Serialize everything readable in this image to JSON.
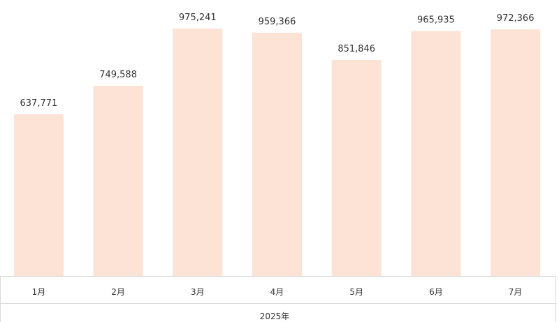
{
  "chart_data": {
    "type": "bar",
    "categories": [
      "1月",
      "2月",
      "3月",
      "4月",
      "5月",
      "6月",
      "7月"
    ],
    "values": [
      637771,
      749588,
      975241,
      959366,
      851846,
      965935,
      972366
    ],
    "data_labels": [
      "637,771",
      "749,588",
      "975,241",
      "959,366",
      "851,846",
      "965,935",
      "972,366"
    ],
    "x_group_label": "2025年",
    "ylim": [
      0,
      1000000
    ],
    "grid": false,
    "legend": "none",
    "colors": {
      "bar": "#fce3d6",
      "axis": "#d9d9d9",
      "text": "#333333"
    }
  }
}
